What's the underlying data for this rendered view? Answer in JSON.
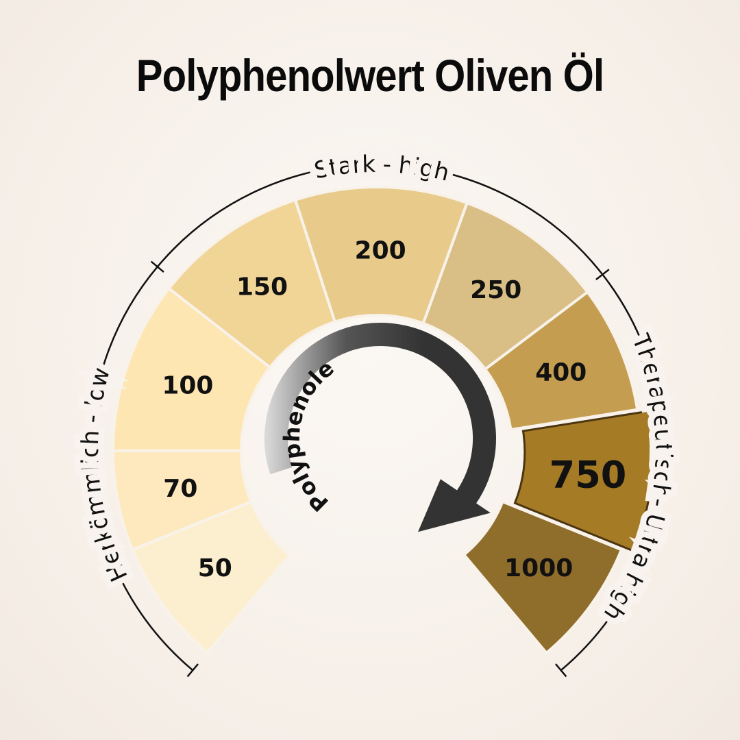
{
  "title": "Polyphenolwert Oliven Öl",
  "arrow_label": "Polyphenole",
  "segments": [
    {
      "label": "50",
      "color": "#fcefd0"
    },
    {
      "label": "70",
      "color": "#fde9bd"
    },
    {
      "label": "100",
      "color": "#fde6b2"
    },
    {
      "label": "150",
      "color": "#f1d597"
    },
    {
      "label": "200",
      "color": "#e8cb8b"
    },
    {
      "label": "250",
      "color": "#d9bf86"
    },
    {
      "label": "400",
      "color": "#c49d50"
    },
    {
      "label": "750",
      "color": "#a57b26",
      "highlighted": true
    },
    {
      "label": "1000",
      "color": "#8f6d2b"
    }
  ],
  "brackets": [
    {
      "label": "Herkömmlich - low"
    },
    {
      "label": "Stark - high"
    },
    {
      "label": "Therapeutisch- Ultra high"
    }
  ],
  "colors": {
    "arrow": "#333333",
    "outline": "#4a3510"
  }
}
